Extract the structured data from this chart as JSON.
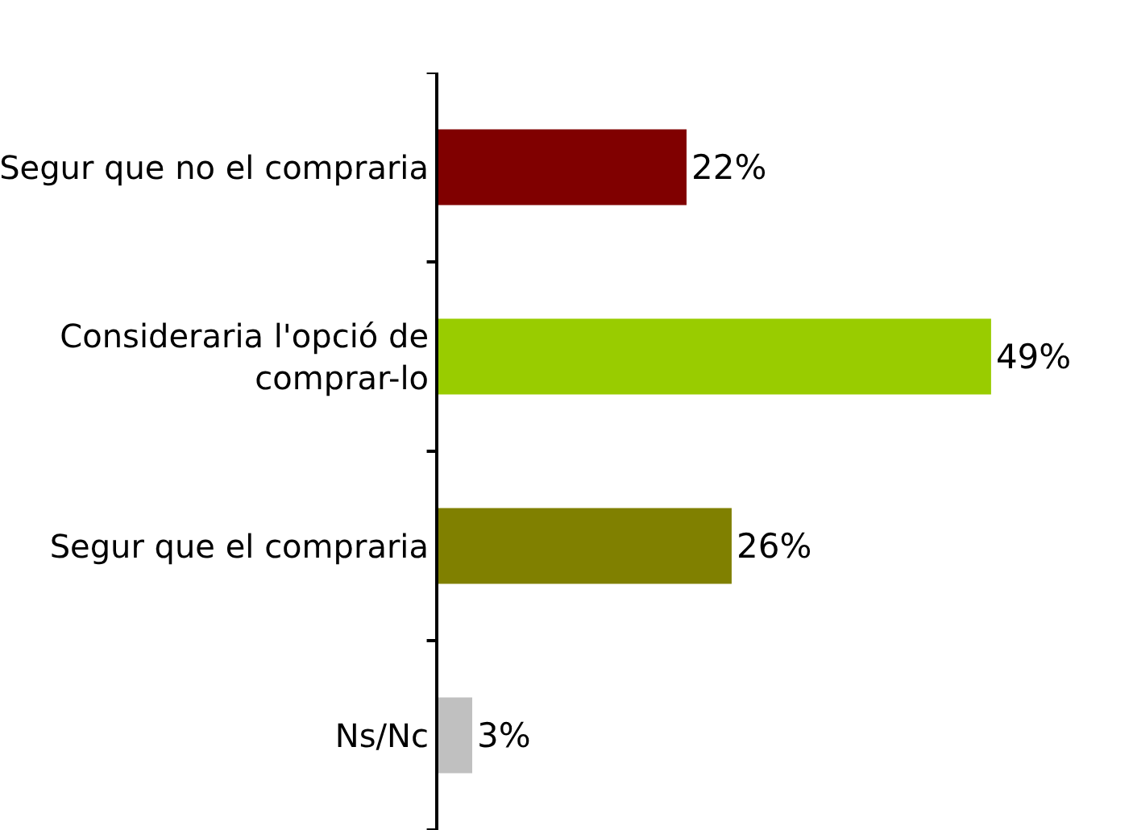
{
  "chart_data": {
    "type": "bar",
    "orientation": "horizontal",
    "categories": [
      "Segur que no el compraria",
      "Consideraria l'opció de comprar-lo",
      "Segur que el compraria",
      "Ns/Nc"
    ],
    "values": [
      22,
      49,
      26,
      3
    ],
    "value_labels": [
      "22%",
      "49%",
      "26%",
      "3%"
    ],
    "colors": [
      "#800000",
      "#99cc00",
      "#808000",
      "#c0c0c0"
    ]
  }
}
